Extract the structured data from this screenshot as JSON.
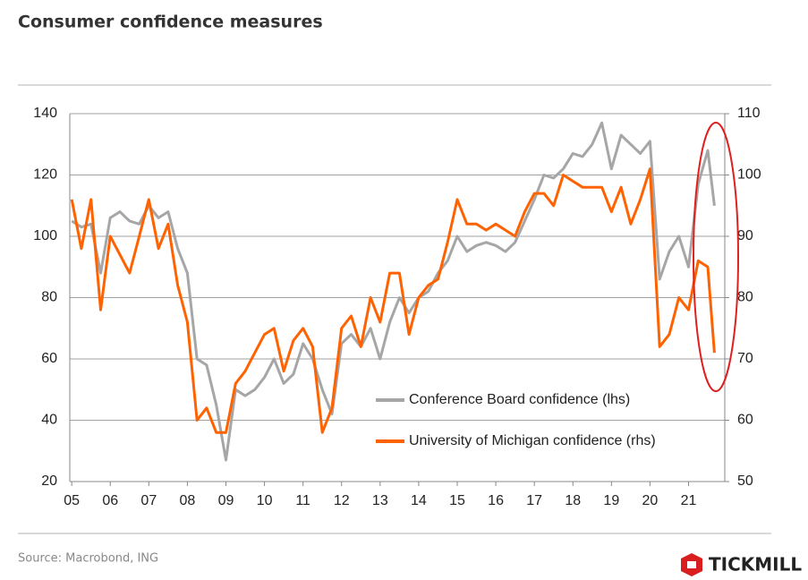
{
  "chart_data": {
    "type": "line",
    "title": "Consumer confidence measures",
    "source": "Source: Macrobond, ING",
    "brand": "TICKMILL",
    "x": [
      2005,
      2005.25,
      2005.5,
      2005.75,
      2006,
      2006.25,
      2006.5,
      2006.75,
      2007,
      2007.25,
      2007.5,
      2007.75,
      2008,
      2008.25,
      2008.5,
      2008.75,
      2009,
      2009.25,
      2009.5,
      2009.75,
      2010,
      2010.25,
      2010.5,
      2010.75,
      2011,
      2011.25,
      2011.5,
      2011.75,
      2012,
      2012.25,
      2012.5,
      2012.75,
      2013,
      2013.25,
      2013.5,
      2013.75,
      2014,
      2014.25,
      2014.5,
      2014.75,
      2015,
      2015.25,
      2015.5,
      2015.75,
      2016,
      2016.25,
      2016.5,
      2016.75,
      2017,
      2017.25,
      2017.5,
      2017.75,
      2018,
      2018.25,
      2018.5,
      2018.75,
      2019,
      2019.25,
      2019.5,
      2019.75,
      2020,
      2020.25,
      2020.5,
      2020.75,
      2021,
      2021.25,
      2021.5,
      2021.67
    ],
    "xlim": [
      2004.95,
      2021.94
    ],
    "xticks": [
      {
        "value": 2005,
        "label": "05"
      },
      {
        "value": 2006,
        "label": "06"
      },
      {
        "value": 2007,
        "label": "07"
      },
      {
        "value": 2008,
        "label": "08"
      },
      {
        "value": 2009,
        "label": "09"
      },
      {
        "value": 2010,
        "label": "10"
      },
      {
        "value": 2011,
        "label": "11"
      },
      {
        "value": 2012,
        "label": "12"
      },
      {
        "value": 2013,
        "label": "13"
      },
      {
        "value": 2014,
        "label": "14"
      },
      {
        "value": 2015,
        "label": "15"
      },
      {
        "value": 2016,
        "label": "16"
      },
      {
        "value": 2017,
        "label": "17"
      },
      {
        "value": 2018,
        "label": "18"
      },
      {
        "value": 2019,
        "label": "19"
      },
      {
        "value": 2020,
        "label": "20"
      },
      {
        "value": 2021,
        "label": "21"
      }
    ],
    "ylim": [
      20,
      140
    ],
    "yticks": [
      20,
      40,
      60,
      80,
      100,
      120,
      140
    ],
    "y2lim": [
      50,
      110
    ],
    "y2ticks": [
      50,
      60,
      70,
      80,
      90,
      100,
      110
    ],
    "grid": true,
    "series": [
      {
        "name": "Conference Board confidence (lhs)",
        "color": "#a6a6a6",
        "values": [
          105,
          103,
          104,
          88,
          106,
          108,
          105,
          104,
          110,
          106,
          108,
          96,
          88,
          60,
          58,
          45,
          27,
          50,
          48,
          50,
          54,
          60,
          52,
          55,
          65,
          60,
          50,
          42,
          65,
          68,
          64,
          70,
          60,
          72,
          80,
          75,
          80,
          82,
          88,
          92,
          100,
          95,
          97,
          98,
          97,
          95,
          98,
          105,
          112,
          120,
          119,
          122,
          127,
          126,
          130,
          137,
          122,
          133,
          130,
          127,
          131,
          86,
          95,
          100,
          90,
          117,
          128,
          110
        ]
      },
      {
        "name": "University of Michigan confidence (rhs)",
        "color": "#ff6200",
        "axis": "y2",
        "values": [
          96,
          88,
          96,
          78,
          90,
          87,
          84,
          90,
          96,
          88,
          92,
          82,
          76,
          60,
          62,
          58,
          58,
          66,
          68,
          71,
          74,
          75,
          68,
          73,
          75,
          72,
          58,
          62,
          75,
          77,
          72,
          80,
          76,
          84,
          84,
          74,
          80,
          82,
          83,
          89,
          96,
          92,
          92,
          91,
          92,
          91,
          90,
          94,
          97,
          97,
          95,
          100,
          99,
          98,
          98,
          98,
          94,
          98,
          92,
          96,
          101,
          72,
          74,
          80,
          78,
          86,
          85,
          71
        ]
      }
    ]
  }
}
